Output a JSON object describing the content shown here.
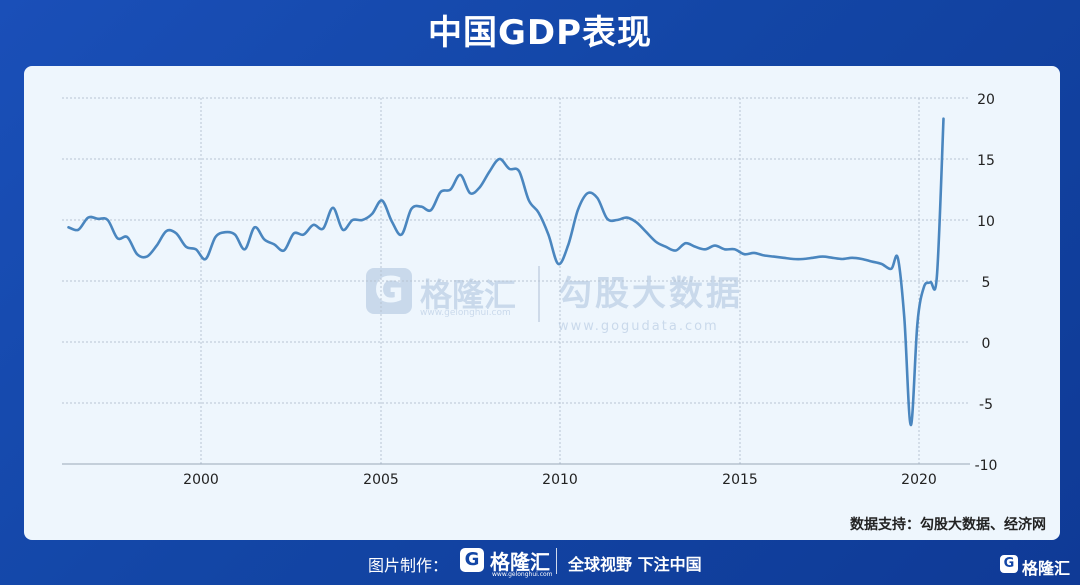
{
  "title": "中国GDP表现",
  "source_text": "数据支持：勾股大数据、经济网",
  "watermark": {
    "logo_glyph": "G",
    "brand": "格隆汇",
    "url": "www.gelonghui.com",
    "brand2": "勾股大数据",
    "url2": "www.gogudata.com"
  },
  "footer": {
    "credit_label": "图片制作：",
    "logo_glyph": "G",
    "brand": "格隆汇",
    "url": "www.gelonghui.com",
    "slogan": "全球视野 下注中国",
    "corner_glyph": "G",
    "corner_brand": "格隆汇"
  },
  "colors": {
    "line": "#4a86bf",
    "grid": "#b8c4d2",
    "background": "#eef6fd"
  },
  "chart_data": {
    "type": "line",
    "title": "",
    "xlabel": "",
    "ylabel": "",
    "xlim": [
      1996.4,
      2021.8
    ],
    "ylim": [
      -10,
      20
    ],
    "x_ticks": [
      2000,
      2005,
      2010,
      2015,
      2020
    ],
    "y_ticks": [
      20,
      15,
      10,
      5,
      0,
      -5,
      -10
    ],
    "y_axis_side": "right",
    "grid": true,
    "series": [
      {
        "values": [
          [
            1996.6,
            9.4
          ],
          [
            1996.9,
            9.2
          ],
          [
            1997.2,
            10.2
          ],
          [
            1997.5,
            10.1
          ],
          [
            1997.8,
            10.0
          ],
          [
            1998.1,
            8.5
          ],
          [
            1998.4,
            8.6
          ],
          [
            1998.7,
            7.2
          ],
          [
            1999.0,
            7.0
          ],
          [
            1999.3,
            7.9
          ],
          [
            1999.6,
            9.1
          ],
          [
            1999.9,
            8.9
          ],
          [
            2000.2,
            7.8
          ],
          [
            2000.5,
            7.6
          ],
          [
            2000.8,
            6.8
          ],
          [
            2001.1,
            8.6
          ],
          [
            2001.4,
            9.0
          ],
          [
            2001.7,
            8.8
          ],
          [
            2002.0,
            7.6
          ],
          [
            2002.3,
            9.4
          ],
          [
            2002.6,
            8.4
          ],
          [
            2002.9,
            8.0
          ],
          [
            2003.2,
            7.5
          ],
          [
            2003.5,
            8.9
          ],
          [
            2003.8,
            8.8
          ],
          [
            2004.1,
            9.6
          ],
          [
            2004.4,
            9.3
          ],
          [
            2004.7,
            11.0
          ],
          [
            2005.0,
            9.2
          ],
          [
            2005.3,
            10.0
          ],
          [
            2005.6,
            10.0
          ],
          [
            2005.9,
            10.5
          ],
          [
            2006.2,
            11.6
          ],
          [
            2006.5,
            9.9
          ],
          [
            2006.8,
            8.8
          ],
          [
            2007.1,
            10.9
          ],
          [
            2007.4,
            11.1
          ],
          [
            2007.7,
            10.8
          ],
          [
            2008.0,
            12.3
          ],
          [
            2008.3,
            12.5
          ],
          [
            2008.6,
            13.7
          ],
          [
            2008.9,
            12.2
          ],
          [
            2009.2,
            12.7
          ],
          [
            2009.5,
            14.0
          ],
          [
            2009.8,
            15.0
          ],
          [
            2010.1,
            14.2
          ],
          [
            2010.4,
            14.0
          ],
          [
            2010.7,
            11.6
          ],
          [
            2011.0,
            10.6
          ],
          [
            2011.3,
            8.8
          ],
          [
            2011.6,
            6.4
          ],
          [
            2011.9,
            7.9
          ],
          [
            2012.2,
            10.8
          ],
          [
            2012.5,
            12.2
          ],
          [
            2012.8,
            11.8
          ],
          [
            2013.1,
            10.1
          ],
          [
            2013.4,
            10.0
          ],
          [
            2013.7,
            10.2
          ],
          [
            2014.0,
            9.8
          ],
          [
            2014.3,
            9.0
          ],
          [
            2014.6,
            8.2
          ],
          [
            2014.9,
            7.8
          ],
          [
            2015.2,
            7.5
          ],
          [
            2015.5,
            8.1
          ],
          [
            2015.8,
            7.8
          ],
          [
            2016.1,
            7.6
          ],
          [
            2016.4,
            7.9
          ],
          [
            2016.7,
            7.6
          ],
          [
            2017.0,
            7.6
          ],
          [
            2017.3,
            7.2
          ],
          [
            2017.6,
            7.3
          ],
          [
            2017.9,
            7.1
          ],
          [
            2018.2,
            7.0
          ],
          [
            2018.5,
            6.9
          ],
          [
            2018.8,
            6.8
          ],
          [
            2019.1,
            6.8
          ],
          [
            2019.4,
            6.9
          ],
          [
            2019.7,
            7.0
          ],
          [
            2020.0,
            6.9
          ],
          [
            2020.3,
            6.8
          ],
          [
            2020.6,
            6.9
          ],
          [
            2020.9,
            6.8
          ],
          [
            2021.2,
            6.6
          ],
          [
            2021.5,
            6.4
          ],
          [
            2021.8,
            6.0
          ],
          [
            2022.0,
            6.9
          ],
          [
            2022.2,
            2.0
          ],
          [
            2022.4,
            -6.8
          ],
          [
            2022.6,
            1.5
          ],
          [
            2022.8,
            4.5
          ],
          [
            2023.0,
            4.9
          ],
          [
            2023.2,
            5.4
          ],
          [
            2023.4,
            18.3
          ]
        ]
      }
    ]
  }
}
